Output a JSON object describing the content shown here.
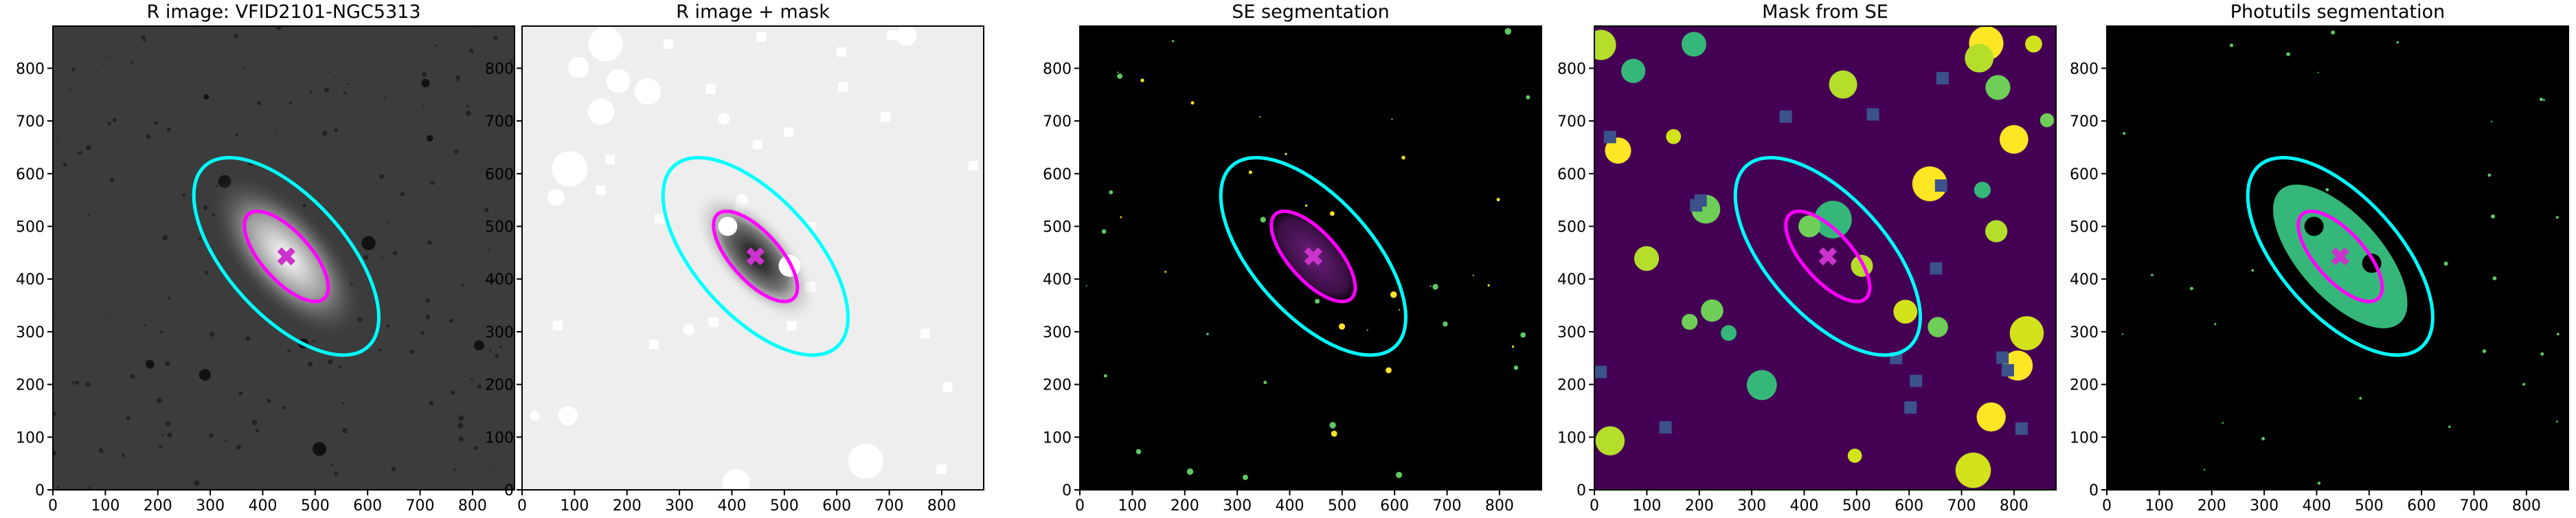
{
  "chart_data": [
    {
      "type": "image",
      "title": "R image: VFID2101-NGC5313",
      "facecolor": "#3c3c3c",
      "xlim": [
        0,
        880
      ],
      "ylim": [
        0,
        880
      ],
      "xticks": [
        0,
        100,
        200,
        300,
        400,
        500,
        600,
        700,
        800
      ],
      "yticks": [
        0,
        100,
        200,
        300,
        400,
        500,
        600,
        700,
        800
      ],
      "ellipses": [
        {
          "color": "#00ffff",
          "center": [
            445,
            443
          ],
          "a": 232,
          "b": 112,
          "angle": -48
        },
        {
          "color": "#ff00ff",
          "center": [
            445,
            443
          ],
          "a": 108,
          "b": 46,
          "angle": -48
        }
      ],
      "marker": {
        "color": "#cc33cc",
        "x": 445,
        "y": 443
      }
    },
    {
      "type": "image",
      "title": "R image + mask",
      "facecolor": "#eeeeee",
      "xlim": [
        0,
        880
      ],
      "ylim": [
        0,
        880
      ],
      "xticks": [
        0,
        100,
        200,
        300,
        400,
        500,
        600,
        700,
        800
      ],
      "yticks": [
        0,
        100,
        200,
        300,
        400,
        500,
        600,
        700,
        800
      ],
      "ellipses": [
        {
          "color": "#00ffff",
          "center": [
            445,
            443
          ],
          "a": 232,
          "b": 112,
          "angle": -48
        },
        {
          "color": "#ff00ff",
          "center": [
            445,
            443
          ],
          "a": 108,
          "b": 46,
          "angle": -48
        }
      ],
      "marker": {
        "color": "#cc33cc",
        "x": 445,
        "y": 443
      }
    },
    {
      "type": "image",
      "title": "SE segmentation",
      "facecolor": "#000000",
      "xlim": [
        0,
        880
      ],
      "ylim": [
        0,
        880
      ],
      "xticks": [
        0,
        100,
        200,
        300,
        400,
        500,
        600,
        700,
        800
      ],
      "yticks": [
        0,
        100,
        200,
        300,
        400,
        500,
        600,
        700,
        800
      ],
      "ellipses": [
        {
          "color": "#00ffff",
          "center": [
            445,
            443
          ],
          "a": 232,
          "b": 112,
          "angle": -48
        },
        {
          "color": "#ff00ff",
          "center": [
            445,
            443
          ],
          "a": 108,
          "b": 46,
          "angle": -48
        }
      ],
      "marker": {
        "color": "#cc33cc",
        "x": 445,
        "y": 443
      }
    },
    {
      "type": "image",
      "title": "Mask from SE",
      "facecolor": "#440154",
      "xlim": [
        0,
        880
      ],
      "ylim": [
        0,
        880
      ],
      "xticks": [
        0,
        100,
        200,
        300,
        400,
        500,
        600,
        700,
        800
      ],
      "yticks": [
        0,
        100,
        200,
        300,
        400,
        500,
        600,
        700,
        800
      ],
      "ellipses": [
        {
          "color": "#00ffff",
          "center": [
            445,
            443
          ],
          "a": 232,
          "b": 112,
          "angle": -48
        },
        {
          "color": "#ff00ff",
          "center": [
            445,
            443
          ],
          "a": 108,
          "b": 46,
          "angle": -48
        }
      ],
      "marker": {
        "color": "#cc33cc",
        "x": 445,
        "y": 443
      }
    },
    {
      "type": "image",
      "title": "Photutils segmentation",
      "facecolor": "#000000",
      "xlim": [
        0,
        880
      ],
      "ylim": [
        0,
        880
      ],
      "xticks": [
        0,
        100,
        200,
        300,
        400,
        500,
        600,
        700,
        800
      ],
      "yticks": [
        0,
        100,
        200,
        300,
        400,
        500,
        600,
        700,
        800
      ],
      "ellipses": [
        {
          "color": "#00ffff",
          "center": [
            445,
            443
          ],
          "a": 232,
          "b": 112,
          "angle": -48
        },
        {
          "color": "#ff00ff",
          "center": [
            445,
            443
          ],
          "a": 108,
          "b": 46,
          "angle": -48
        }
      ],
      "marker": {
        "color": "#cc33cc",
        "x": 445,
        "y": 443
      }
    }
  ]
}
